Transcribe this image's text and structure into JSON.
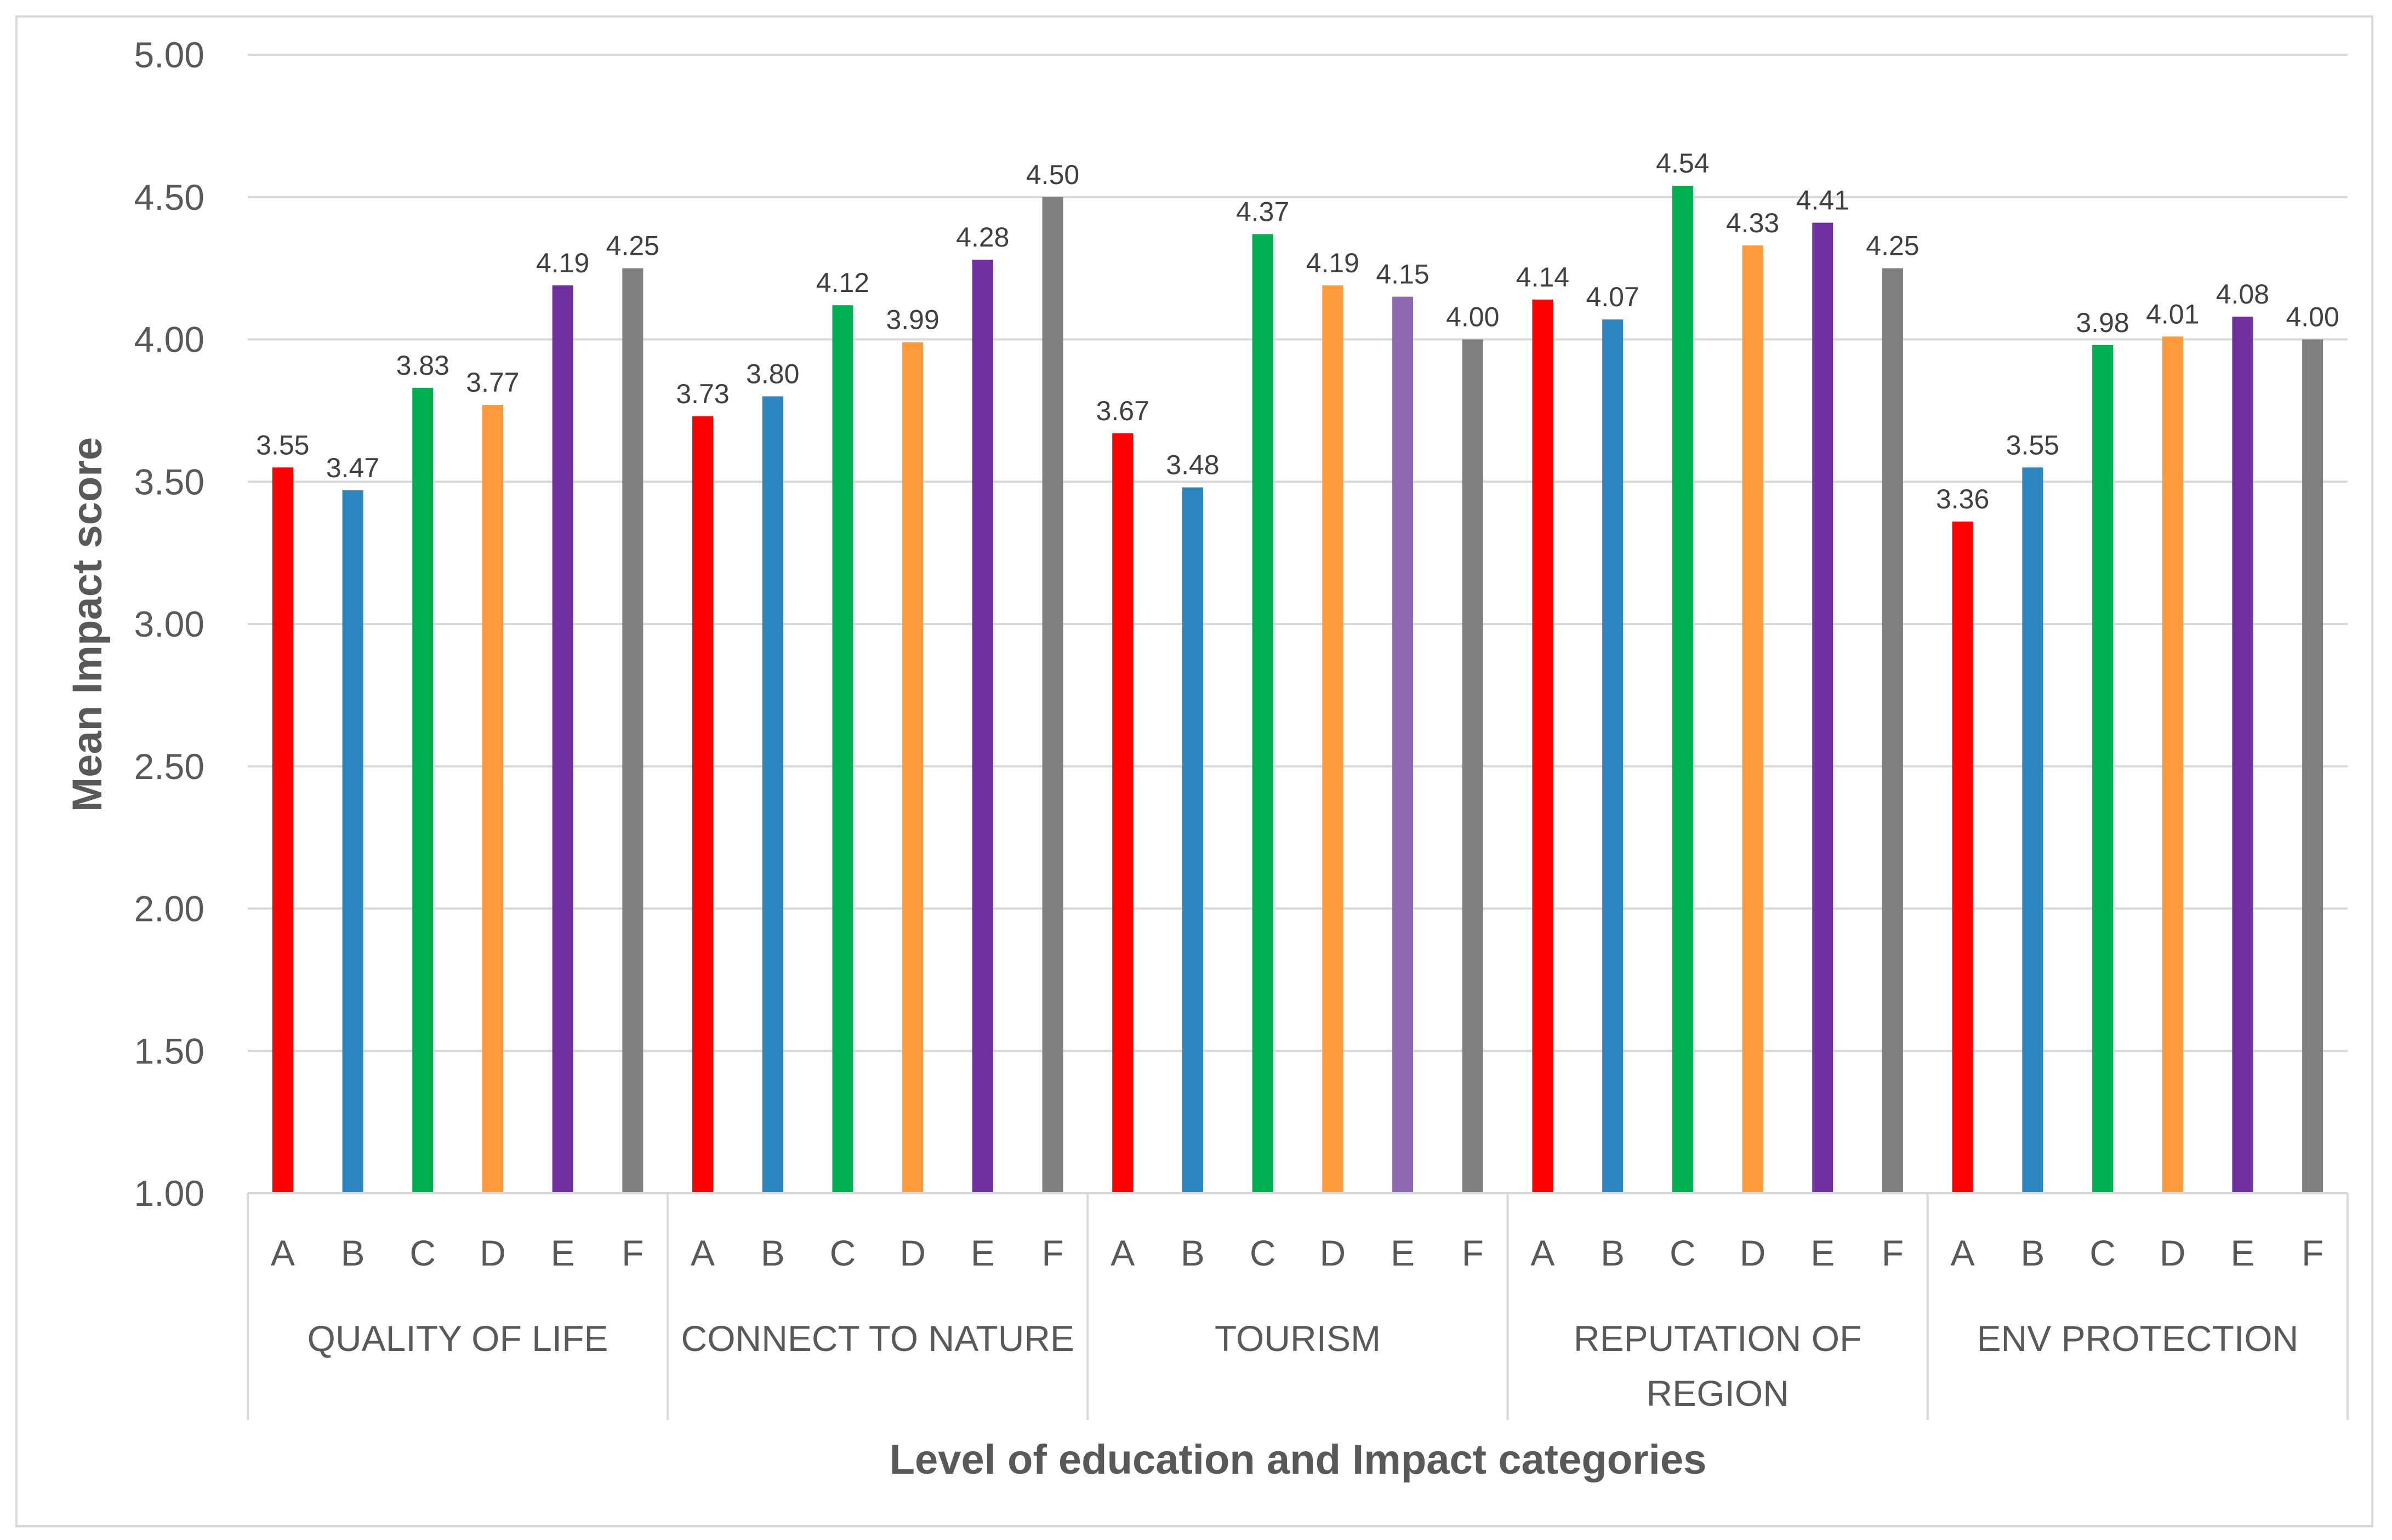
{
  "chart_data": {
    "type": "bar",
    "title": "",
    "xlabel": "Level of education and Impact categories",
    "ylabel": "Mean Impact score",
    "ylim": [
      1.0,
      5.0
    ],
    "yticks": [
      "1.00",
      "1.50",
      "2.00",
      "2.50",
      "3.00",
      "3.50",
      "4.00",
      "4.50",
      "5.00"
    ],
    "grid": true,
    "legend": "none",
    "levels": [
      "A",
      "B",
      "C",
      "D",
      "E",
      "F"
    ],
    "level_colors": [
      "#ff0000",
      "#2e86c1",
      "#00b050",
      "#ff9a3c",
      "#7030a0",
      "#808080"
    ],
    "groups": [
      {
        "name_lines": [
          "QUALITY OF LIFE"
        ],
        "values": [
          3.55,
          3.47,
          3.83,
          3.77,
          4.19,
          4.25
        ],
        "labels": [
          "3.55",
          "3.47",
          "3.83",
          "3.77",
          "4.19",
          "4.25"
        ]
      },
      {
        "name_lines": [
          "CONNECT TO NATURE"
        ],
        "values": [
          3.73,
          3.8,
          4.12,
          3.99,
          4.28,
          4.5
        ],
        "labels": [
          "3.73",
          "3.80",
          "4.12",
          "3.99",
          "4.28",
          "4.50"
        ]
      },
      {
        "name_lines": [
          "TOURISM"
        ],
        "values": [
          3.67,
          3.48,
          4.37,
          4.19,
          4.15,
          4.0
        ],
        "labels": [
          "3.67",
          "3.48",
          "4.37",
          "4.19",
          "4.15",
          "4.00"
        ],
        "color_overrides": {
          "4": "#8e6bb0"
        }
      },
      {
        "name_lines": [
          "REPUTATION OF",
          "REGION"
        ],
        "values": [
          4.14,
          4.07,
          4.54,
          4.33,
          4.41,
          4.25
        ],
        "labels": [
          "4.14",
          "4.07",
          "4.54",
          "4.33",
          "4.41",
          "4.25"
        ]
      },
      {
        "name_lines": [
          "ENV PROTECTION"
        ],
        "values": [
          3.36,
          3.55,
          3.98,
          4.01,
          4.08,
          4.0
        ],
        "labels": [
          "3.36",
          "3.55",
          "3.98",
          "4.01",
          "4.08",
          "4.00"
        ]
      }
    ]
  }
}
